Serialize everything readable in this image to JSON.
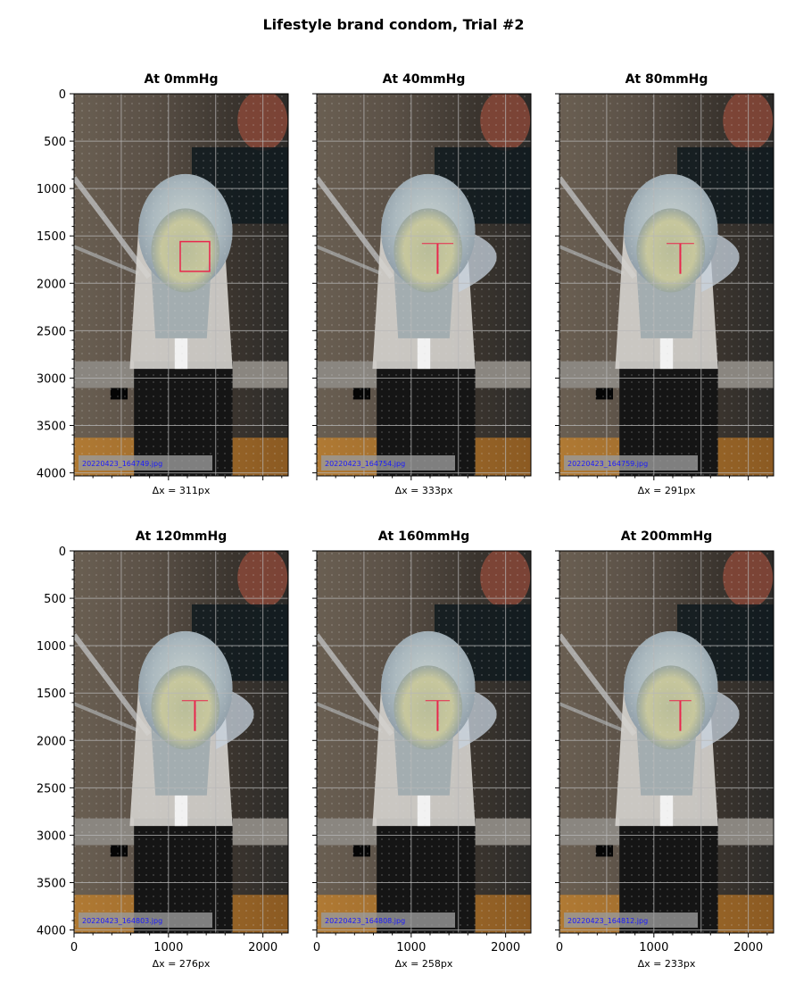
{
  "figure": {
    "title": "Lifestyle brand condom, Trial #2"
  },
  "axes": {
    "y_ticks": [
      "0",
      "500",
      "1000",
      "1500",
      "2000",
      "2500",
      "3000",
      "3500",
      "4000"
    ],
    "x_ticks": [
      "0",
      "1000",
      "2000"
    ],
    "y_range": [
      0,
      4032
    ],
    "x_range": [
      0,
      2268
    ]
  },
  "panels": [
    {
      "title": "At 0mmHg",
      "filename": "20220423_164749.jpg",
      "xlabel": "Δx = 311px",
      "delta_x": 311,
      "pressure_mmHg": 0,
      "marker": "box"
    },
    {
      "title": "At 40mmHg",
      "filename": "20220423_164754.jpg",
      "xlabel": "Δx = 333px",
      "delta_x": 333,
      "pressure_mmHg": 40,
      "marker": "line"
    },
    {
      "title": "At 80mmHg",
      "filename": "20220423_164759.jpg",
      "xlabel": "Δx = 291px",
      "delta_x": 291,
      "pressure_mmHg": 80,
      "marker": "line"
    },
    {
      "title": "At 120mmHg",
      "filename": "20220423_164803.jpg",
      "xlabel": "Δx = 276px",
      "delta_x": 276,
      "pressure_mmHg": 120,
      "marker": "line"
    },
    {
      "title": "At 160mmHg",
      "filename": "20220423_164808.jpg",
      "xlabel": "Δx = 258px",
      "delta_x": 258,
      "pressure_mmHg": 160,
      "marker": "line"
    },
    {
      "title": "At 200mmHg",
      "filename": "20220423_164812.jpg",
      "xlabel": "Δx = 233px",
      "delta_x": 233,
      "pressure_mmHg": 200,
      "marker": "line"
    }
  ],
  "colors": {
    "marker": "#e8264d",
    "filename_text": "#1a1aff",
    "filename_bg": "#9a9a9a"
  }
}
